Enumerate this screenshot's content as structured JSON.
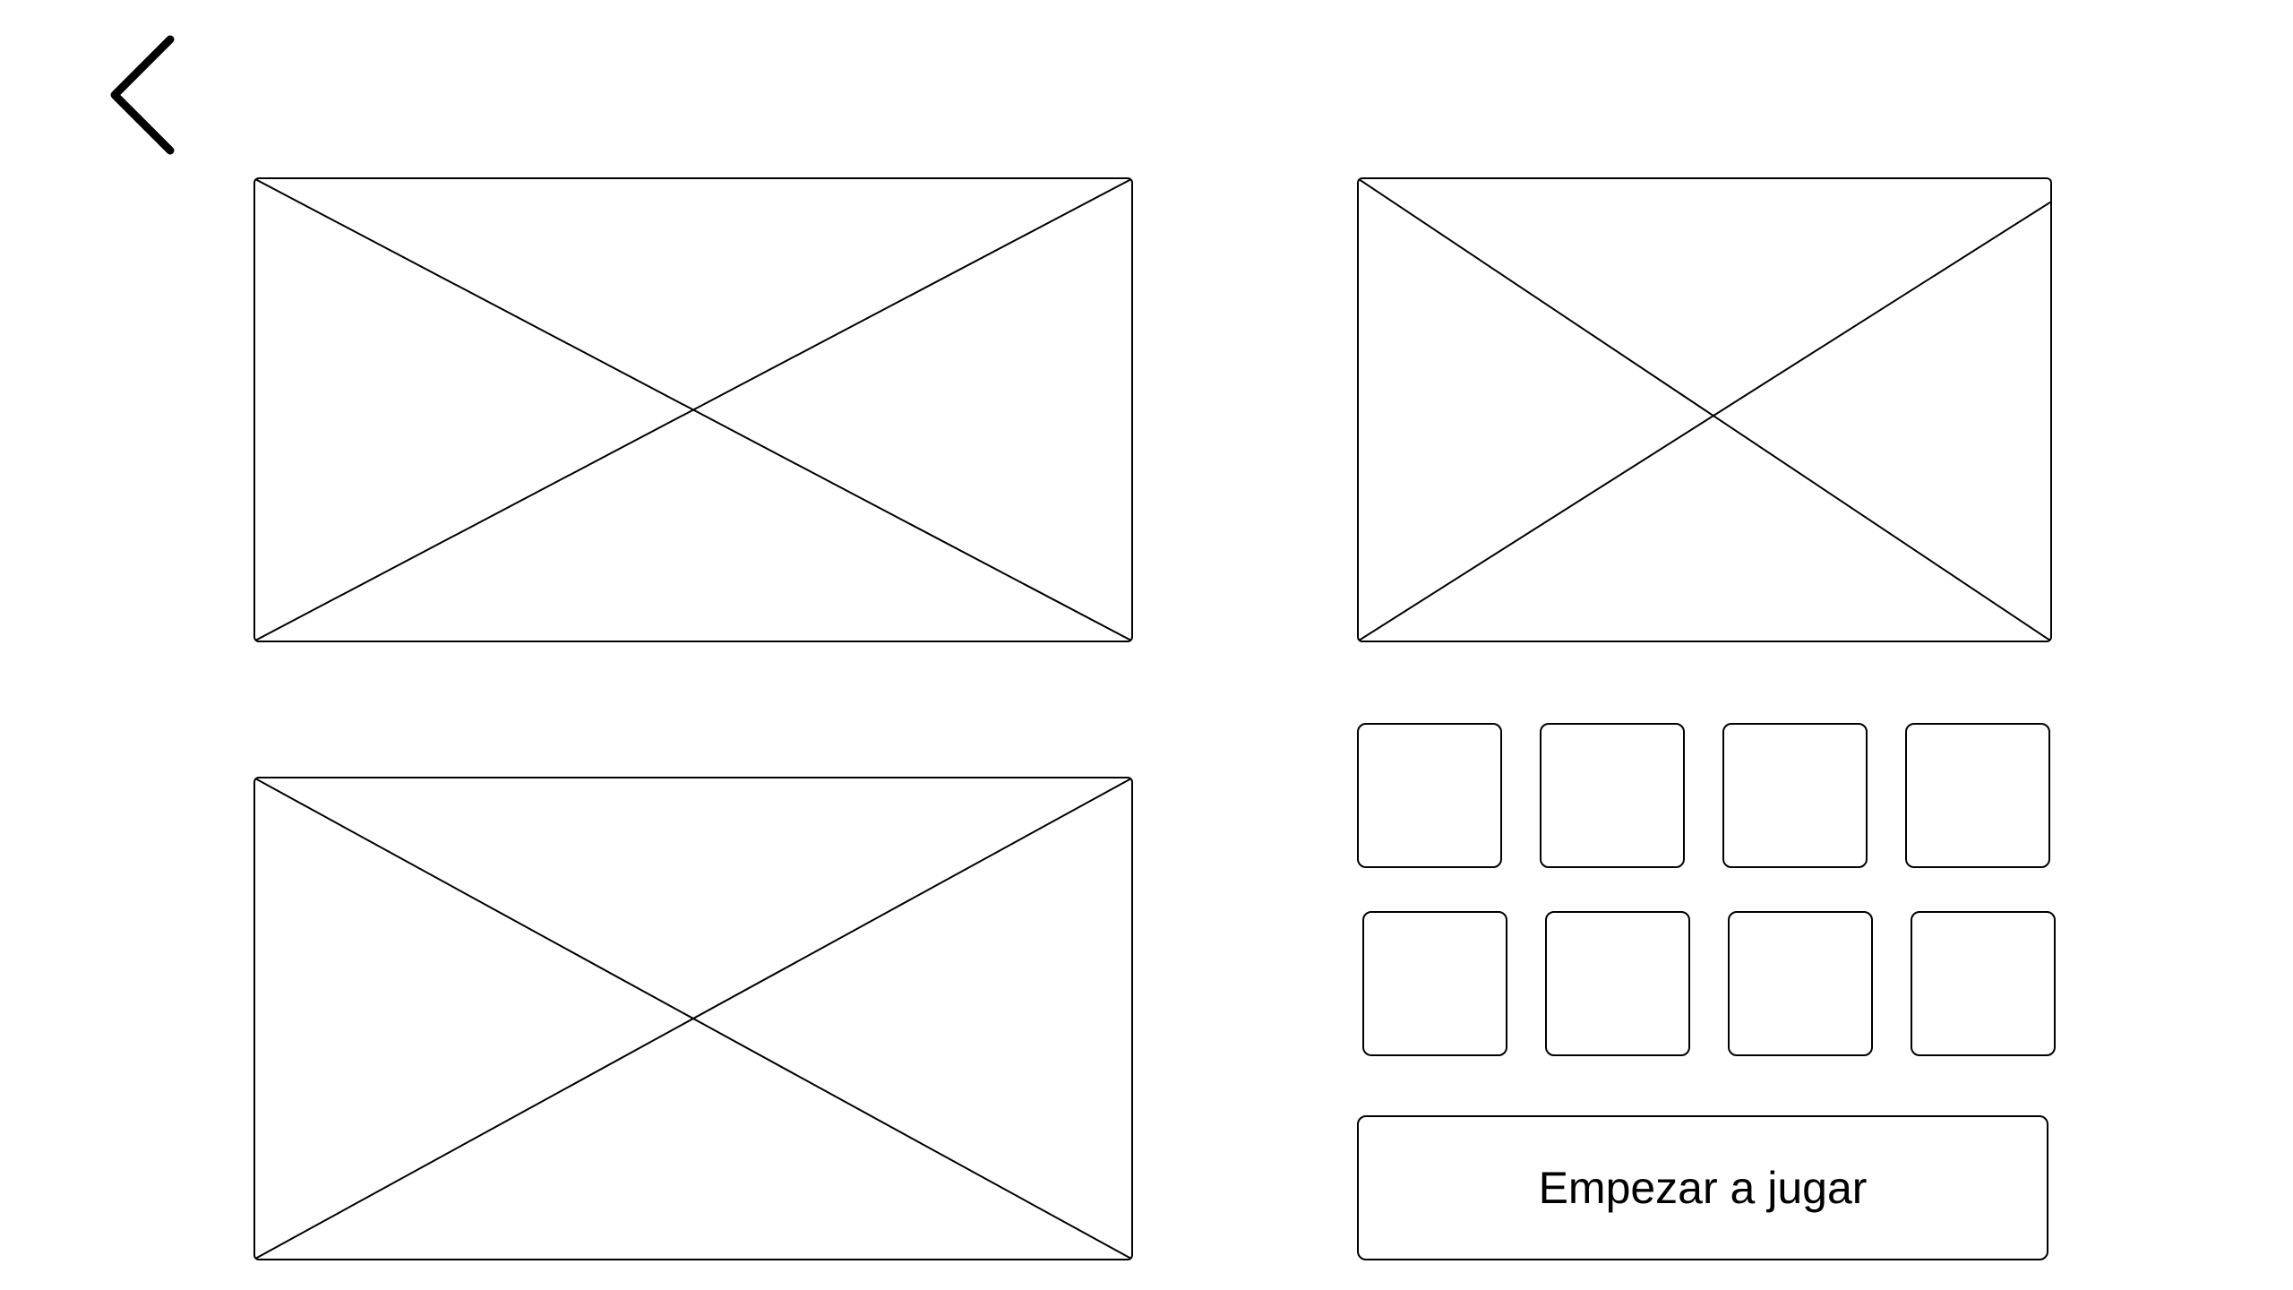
{
  "header": {
    "back_icon": "chevron-left-icon"
  },
  "images": [
    {
      "icon": "image-placeholder-icon"
    },
    {
      "icon": "image-placeholder-icon"
    },
    {
      "icon": "image-placeholder-icon"
    }
  ],
  "actions": {
    "start_label": "Empezar a jugar"
  }
}
